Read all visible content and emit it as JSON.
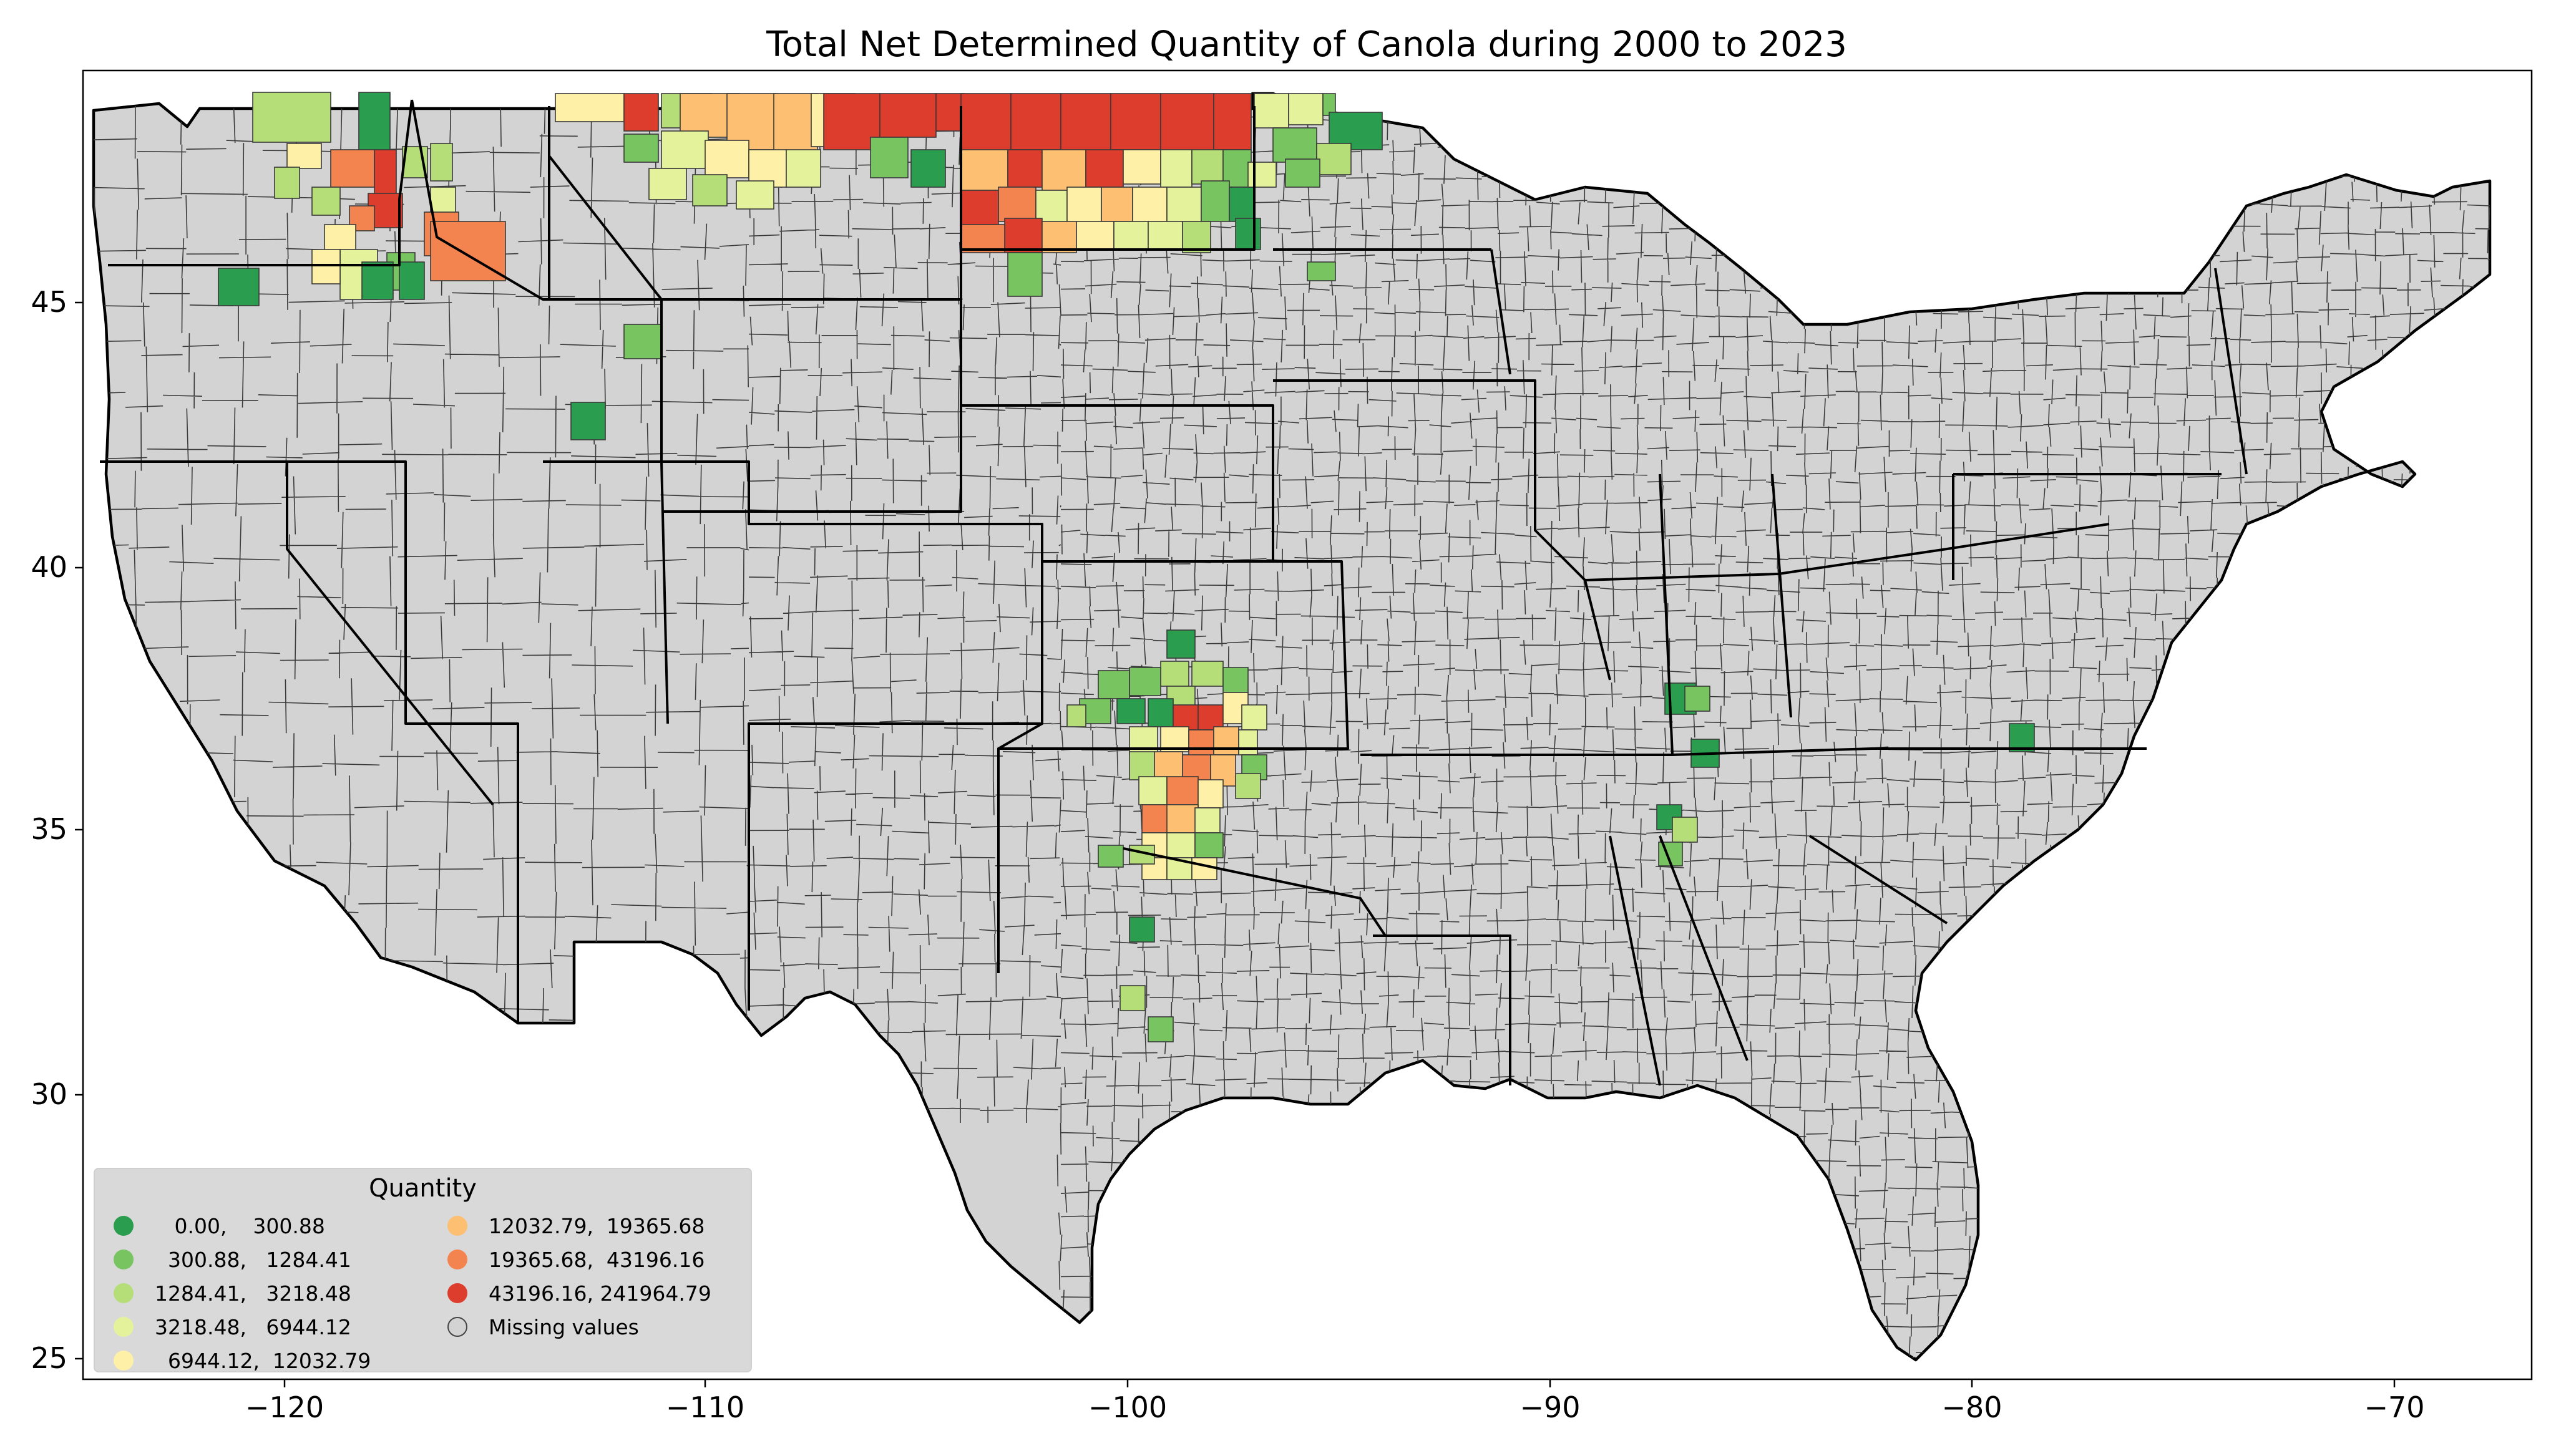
{
  "title": "Total Net Determined Quantity of Canola during 2000 to 2023",
  "axes": {
    "x_ticks": [
      "−120",
      "−110",
      "−100",
      "−90",
      "−80",
      "−70"
    ],
    "y_ticks": [
      "45",
      "40",
      "35",
      "30",
      "25"
    ]
  },
  "colors": {
    "missing": "#d3d3d3",
    "border": "#000000",
    "bins": [
      "#2a9e4e",
      "#78c460",
      "#b5de79",
      "#e4f29c",
      "#fef0a7",
      "#fdbf71",
      "#f4844f",
      "#dc3d2d"
    ]
  },
  "legend": {
    "title": "Quantity",
    "items": [
      {
        "label": "   0.00,    300.88",
        "color": "#2a9e4e"
      },
      {
        "label": "  300.88,   1284.41",
        "color": "#78c460"
      },
      {
        "label": "1284.41,   3218.48",
        "color": "#b5de79"
      },
      {
        "label": "3218.48,   6944.12",
        "color": "#e4f29c"
      },
      {
        "label": "  6944.12,  12032.79",
        "color": "#fef0a7"
      },
      {
        "label": "12032.79,  19365.68",
        "color": "#fdbf71"
      },
      {
        "label": "19365.68,  43196.16",
        "color": "#f4844f"
      },
      {
        "label": "43196.16, 241964.79",
        "color": "#dc3d2d"
      },
      {
        "label": "Missing values",
        "color": "#d3d3d3"
      }
    ]
  }
}
